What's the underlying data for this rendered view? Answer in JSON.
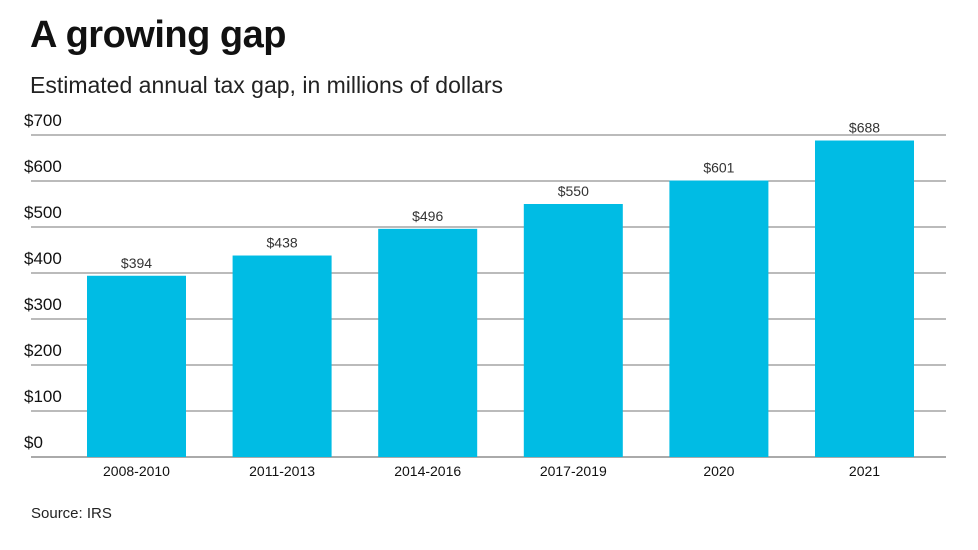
{
  "chart_data": {
    "type": "bar",
    "title": "A growing gap",
    "subtitle": "Estimated annual tax gap, in millions of dollars",
    "categories": [
      "2008-2010",
      "2011-2013",
      "2014-2016",
      "2017-2019",
      "2020",
      "2021"
    ],
    "values": [
      394,
      438,
      496,
      550,
      601,
      688
    ],
    "data_labels": [
      "$394",
      "$438",
      "$496",
      "$550",
      "$601",
      "$688"
    ],
    "ylim": [
      0,
      700
    ],
    "yticks": [
      0,
      100,
      200,
      300,
      400,
      500,
      600,
      700
    ],
    "ytick_labels": [
      "$0",
      "$100",
      "$200",
      "$300",
      "$400",
      "$500",
      "$600",
      "$700"
    ],
    "xlabel": "",
    "ylabel": "",
    "grid": true,
    "bar_color": "#00BCE4",
    "source": "Source: IRS"
  }
}
